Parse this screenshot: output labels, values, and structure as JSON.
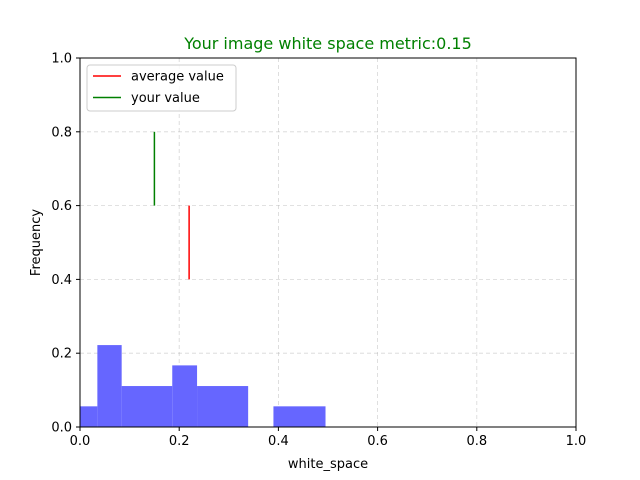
{
  "chart_data": {
    "type": "bar",
    "title": "Your image white space metric:0.15",
    "title_color": "#008000",
    "xlabel": "white_space",
    "ylabel": "Frequency",
    "xlim": [
      0.0,
      1.0
    ],
    "ylim": [
      0.0,
      1.0
    ],
    "xticks": [
      "0.0",
      "0.2",
      "0.4",
      "0.6",
      "0.8",
      "1.0"
    ],
    "yticks": [
      "0.0",
      "0.2",
      "0.4",
      "0.6",
      "0.8",
      "1.0"
    ],
    "grid": true,
    "legend_placement": "top-left",
    "histogram": {
      "color": "#6666ff",
      "bins": [
        {
          "x0": 0.0,
          "x1": 0.035,
          "value": 0.056
        },
        {
          "x0": 0.035,
          "x1": 0.084,
          "value": 0.222
        },
        {
          "x0": 0.084,
          "x1": 0.186,
          "value": 0.111
        },
        {
          "x0": 0.186,
          "x1": 0.236,
          "value": 0.167
        },
        {
          "x0": 0.236,
          "x1": 0.339,
          "value": 0.111
        },
        {
          "x0": 0.339,
          "x1": 0.39,
          "value": 0.0
        },
        {
          "x0": 0.39,
          "x1": 0.495,
          "value": 0.056
        }
      ]
    },
    "series": [
      {
        "name": "average value",
        "color": "#ff0000",
        "x": 0.22,
        "y0": 0.4,
        "y1": 0.6
      },
      {
        "name": "your value",
        "color": "#008000",
        "x": 0.15,
        "y0": 0.6,
        "y1": 0.8
      }
    ]
  }
}
